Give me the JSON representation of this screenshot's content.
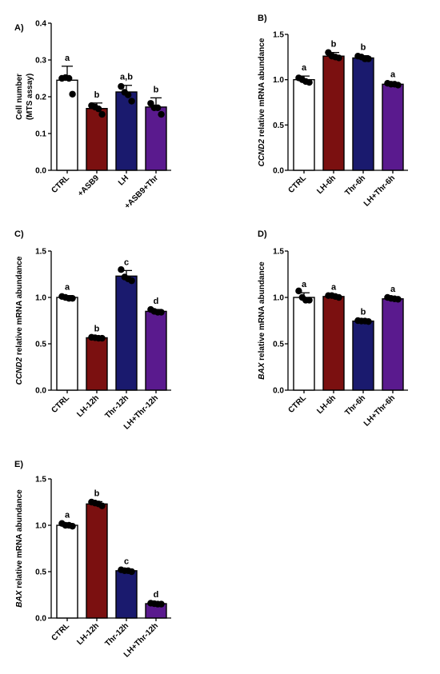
{
  "chart_data": [
    {
      "type": "bar",
      "panel": "A)",
      "ylabel_lines": [
        "Cell number",
        "(MTS assay)"
      ],
      "ylabel_italic_prefix": "",
      "ylim": [
        0,
        0.4
      ],
      "yticks": [
        0,
        0.1,
        0.2,
        0.3,
        0.4
      ],
      "ytick_labels": [
        "0.0",
        "0.1",
        "0.2",
        "0.3",
        "0.4"
      ],
      "categories": [
        "CTRL",
        "+ASB9",
        "LH",
        "+ASB9+Thr"
      ],
      "values": [
        0.245,
        0.168,
        0.213,
        0.172
      ],
      "errors": [
        0.038,
        0.015,
        0.018,
        0.025
      ],
      "letters": [
        "a",
        "b",
        "a,b",
        "b"
      ],
      "colors": [
        "#ffffff",
        "#7b1010",
        "#1a1a6e",
        "#5a1a8e"
      ],
      "points": [
        [
          0.25,
          0.252,
          0.25,
          0.207
        ],
        [
          0.176,
          0.172,
          0.167,
          0.152
        ],
        [
          0.228,
          0.212,
          0.205,
          0.188
        ],
        [
          0.182,
          0.17,
          0.17,
          0.152
        ]
      ]
    },
    {
      "type": "bar",
      "panel": "B)",
      "ylabel_lines": [],
      "ylabel_italic_prefix": "CCND2",
      "ylabel_rest": " relative mRNA abundance",
      "ylim": [
        0,
        1.5
      ],
      "yticks": [
        0,
        0.5,
        1.0,
        1.5
      ],
      "ytick_labels": [
        "0.0",
        "0.5",
        "1.0",
        "1.5"
      ],
      "categories": [
        "CTRL",
        "LH-6h",
        "Thr-6h",
        "LH+Thr-6h"
      ],
      "values": [
        1.0,
        1.26,
        1.24,
        0.95
      ],
      "errors": [
        0.04,
        0.04,
        0.025,
        0.015
      ],
      "letters": [
        "a",
        "b",
        "b",
        "a"
      ],
      "colors": [
        "#ffffff",
        "#7b1010",
        "#1a1a6e",
        "#5a1a8e"
      ],
      "points": [
        [
          1.02,
          1.0,
          0.98,
          0.97
        ],
        [
          1.3,
          1.26,
          1.25,
          1.24
        ],
        [
          1.26,
          1.25,
          1.23,
          1.23
        ],
        [
          0.96,
          0.95,
          0.95,
          0.94
        ]
      ]
    },
    {
      "type": "bar",
      "panel": "C)",
      "ylabel_lines": [],
      "ylabel_italic_prefix": "CCND2",
      "ylabel_rest": " relative mRNA abundance",
      "ylim": [
        0,
        1.5
      ],
      "yticks": [
        0,
        0.5,
        1.0,
        1.5
      ],
      "ytick_labels": [
        "0.0",
        "0.5",
        "1.0",
        "1.5"
      ],
      "categories": [
        "CTRL",
        "LH-12h",
        "Thr-12h",
        "LH+Thr-12h"
      ],
      "values": [
        1.0,
        0.565,
        1.23,
        0.85
      ],
      "errors": [
        0.02,
        0.01,
        0.06,
        0.02
      ],
      "letters": [
        "a",
        "b",
        "c",
        "d"
      ],
      "colors": [
        "#ffffff",
        "#7b1010",
        "#1a1a6e",
        "#5a1a8e"
      ],
      "points": [
        [
          1.01,
          1.0,
          0.99,
          0.99
        ],
        [
          0.57,
          0.565,
          0.56,
          0.56
        ],
        [
          1.3,
          1.22,
          1.2,
          1.18
        ],
        [
          0.87,
          0.85,
          0.84,
          0.84
        ]
      ]
    },
    {
      "type": "bar",
      "panel": "D)",
      "ylabel_lines": [],
      "ylabel_italic_prefix": "BAX",
      "ylabel_rest": " relative mRNA abundance",
      "ylim": [
        0,
        1.5
      ],
      "yticks": [
        0,
        0.5,
        1.0,
        1.5
      ],
      "ytick_labels": [
        "0.0",
        "0.5",
        "1.0",
        "1.5"
      ],
      "categories": [
        "CTRL",
        "LH-6h",
        "Thr-6h",
        "LH+Thr-6h"
      ],
      "values": [
        1.0,
        1.01,
        0.745,
        0.985
      ],
      "errors": [
        0.05,
        0.01,
        0.01,
        0.015
      ],
      "letters": [
        "a",
        "a",
        "b",
        "a"
      ],
      "colors": [
        "#ffffff",
        "#7b1010",
        "#1a1a6e",
        "#5a1a8e"
      ],
      "points": [
        [
          1.07,
          1.0,
          0.97,
          0.97
        ],
        [
          1.02,
          1.02,
          1.01,
          1.0
        ],
        [
          0.75,
          0.745,
          0.745,
          0.74
        ],
        [
          1.0,
          0.99,
          0.985,
          0.98
        ]
      ]
    },
    {
      "type": "bar",
      "panel": "E)",
      "ylabel_lines": [],
      "ylabel_italic_prefix": "BAX",
      "ylabel_rest": " relative mRNA abundance",
      "ylim": [
        0,
        1.5
      ],
      "yticks": [
        0,
        0.5,
        1.0,
        1.5
      ],
      "ytick_labels": [
        "0.0",
        "0.5",
        "1.0",
        "1.5"
      ],
      "categories": [
        "CTRL",
        "LH-12h",
        "Thr-12h",
        "LH+Thr-12h"
      ],
      "values": [
        1.0,
        1.23,
        0.51,
        0.155
      ],
      "errors": [
        0.02,
        0.025,
        0.01,
        0.01
      ],
      "letters": [
        "a",
        "b",
        "c",
        "d"
      ],
      "colors": [
        "#ffffff",
        "#7b1010",
        "#1a1a6e",
        "#5a1a8e"
      ],
      "points": [
        [
          1.02,
          1.0,
          1.0,
          0.99
        ],
        [
          1.25,
          1.24,
          1.23,
          1.21
        ],
        [
          0.52,
          0.51,
          0.51,
          0.5
        ],
        [
          0.16,
          0.155,
          0.15,
          0.15
        ]
      ]
    }
  ]
}
